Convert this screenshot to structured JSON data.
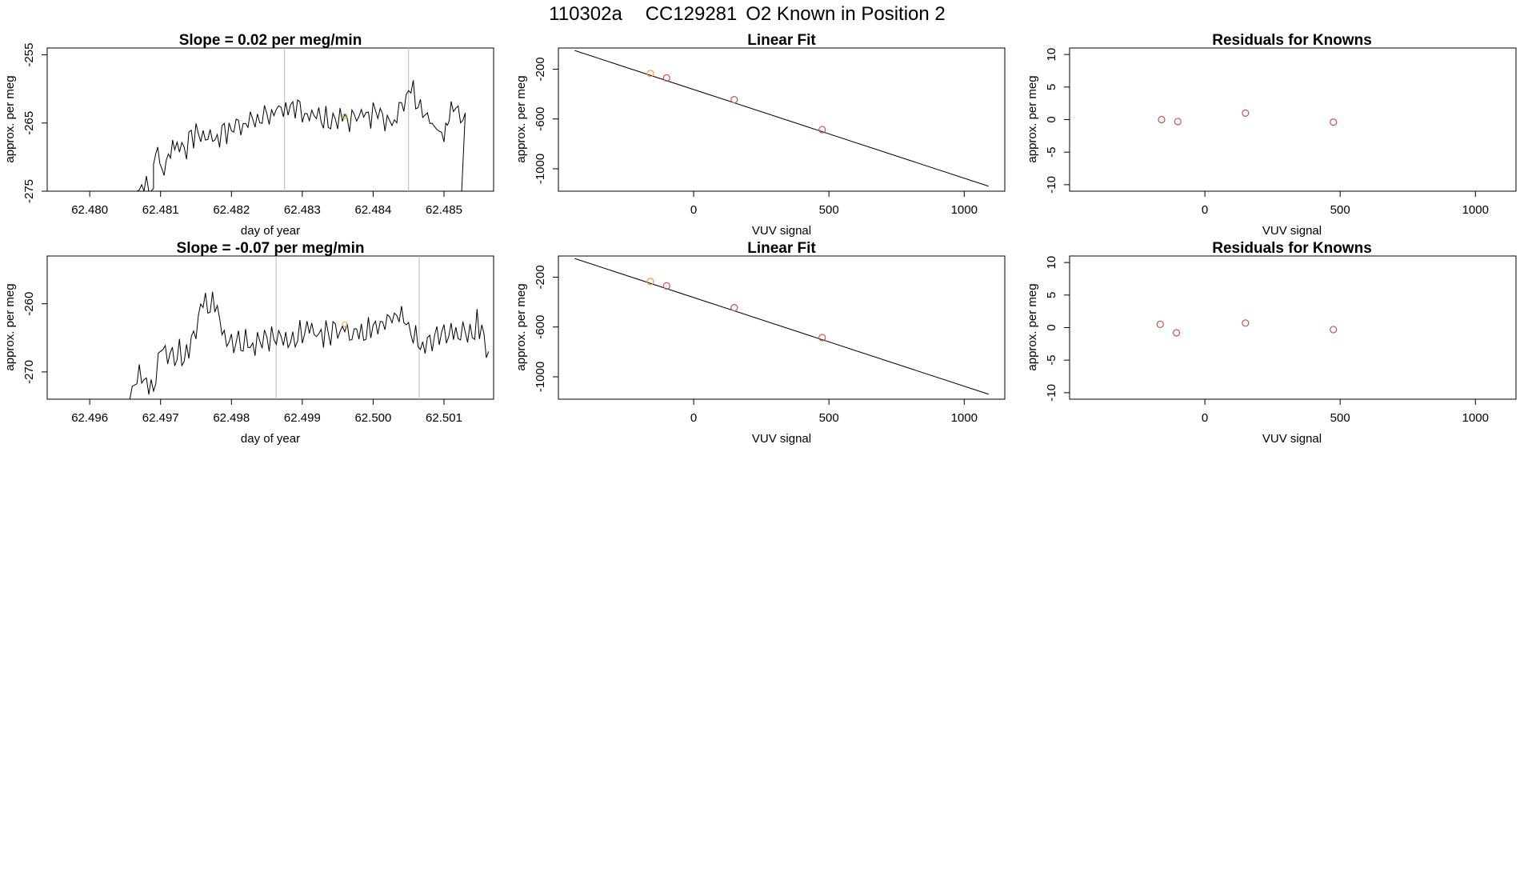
{
  "figure": {
    "title_run": "110302a",
    "title_cylinder": "CC129281",
    "title_desc": "O2 Known in Position  2"
  },
  "chart_data": [
    {
      "type": "line",
      "title": "Slope =  0.02  per meg/min",
      "xlabel": "day of year",
      "ylabel": "approx. per meg",
      "xlim": [
        62.4794,
        62.4857
      ],
      "ylim": [
        -275,
        -254
      ],
      "xticks": [
        "62.480",
        "62.481",
        "62.482",
        "62.483",
        "62.484",
        "62.485"
      ],
      "yticks": [
        "-255",
        "-265",
        "-275"
      ],
      "vlines": [
        62.48275,
        62.4845
      ],
      "marker": {
        "x": 62.4836,
        "y": -264,
        "color": "#f0a030"
      },
      "anchors": [
        [
          62.4794,
          -275.0
        ],
        [
          62.4807,
          -275.0
        ],
        [
          62.4808,
          -274.2
        ],
        [
          62.4809,
          -275.2
        ],
        [
          62.4809,
          -270
        ],
        [
          62.48105,
          -271
        ],
        [
          62.4812,
          -268
        ],
        [
          62.4813,
          -269.5
        ],
        [
          62.4815,
          -266
        ],
        [
          62.4818,
          -267
        ],
        [
          62.4822,
          -265
        ],
        [
          62.4828,
          -262.5
        ],
        [
          62.4832,
          -264.5
        ],
        [
          62.4836,
          -264
        ],
        [
          62.484,
          -263.5
        ],
        [
          62.4843,
          -265
        ],
        [
          62.4845,
          -259.5
        ],
        [
          62.4847,
          -263.5
        ],
        [
          62.4849,
          -266
        ],
        [
          62.485,
          -267.5
        ],
        [
          62.48505,
          -266
        ],
        [
          62.4851,
          -262
        ],
        [
          62.4853,
          -264
        ],
        [
          62.48525,
          -275.5
        ]
      ],
      "wiggle_amp": 2.2
    },
    {
      "type": "line",
      "title": "Slope =  -0.07  per meg/min",
      "xlabel": "day of year",
      "ylabel": "approx. per meg",
      "xlim": [
        62.4954,
        62.5017
      ],
      "ylim": [
        -274,
        -253
      ],
      "xticks": [
        "62.496",
        "62.497",
        "62.498",
        "62.499",
        "62.500",
        "62.501"
      ],
      "yticks": [
        "-260",
        "-270"
      ],
      "vlines": [
        62.49863,
        62.50065
      ],
      "marker": {
        "x": 62.4996,
        "y": -263,
        "color": "#f0a030"
      },
      "anchors": [
        [
          62.4954,
          -274.2
        ],
        [
          62.4966,
          -274.2
        ],
        [
          62.4967,
          -270
        ],
        [
          62.4969,
          -272
        ],
        [
          62.497,
          -267
        ],
        [
          62.4974,
          -267.5
        ],
        [
          62.4976,
          -260
        ],
        [
          62.4978,
          -260.5
        ],
        [
          62.4979,
          -266
        ],
        [
          62.4983,
          -265.5
        ],
        [
          62.4987,
          -265
        ],
        [
          62.4991,
          -264
        ],
        [
          62.4996,
          -264.5
        ],
        [
          62.5,
          -263.5
        ],
        [
          62.5004,
          -262
        ],
        [
          62.5007,
          -265.5
        ],
        [
          62.5012,
          -264.5
        ],
        [
          62.5015,
          -263
        ],
        [
          62.50163,
          -267
        ]
      ],
      "wiggle_amp": 2.2
    },
    {
      "type": "scatter",
      "title": "Linear Fit",
      "xlabel": "VUV signal",
      "ylabel": "approx. per meg",
      "xlim": [
        -500,
        1150
      ],
      "ylim": [
        -1180,
        -30
      ],
      "xticks": [
        0,
        500,
        1000
      ],
      "yticks": [
        -200,
        -600,
        -1000
      ],
      "fit_line": {
        "x": [
          -440,
          1090
        ],
        "y": [
          -50,
          -1140
        ]
      },
      "points": [
        {
          "x": -160,
          "y": -235,
          "color": "#e8a040"
        },
        {
          "x": -100,
          "y": -270,
          "color": "#c85050"
        },
        {
          "x": 150,
          "y": -445,
          "color": "#c85050"
        },
        {
          "x": 475,
          "y": -685,
          "color": "#c85050"
        }
      ]
    },
    {
      "type": "scatter",
      "title": "Residuals for Knowns",
      "xlabel": "VUV signal",
      "ylabel": "approx. per meg",
      "xlim": [
        -500,
        1150
      ],
      "ylim": [
        -11,
        11
      ],
      "xticks": [
        0,
        500,
        1000
      ],
      "yticks": [
        10,
        5,
        0,
        -5,
        -10
      ],
      "points": [
        {
          "x": -160,
          "y": 0.0,
          "color": "#c85050"
        },
        {
          "x": -100,
          "y": -0.3,
          "color": "#c85050"
        },
        {
          "x": 150,
          "y": 1.0,
          "color": "#c85050"
        },
        {
          "x": 475,
          "y": -0.4,
          "color": "#c85050"
        }
      ]
    },
    {
      "type": "scatter",
      "title": "Linear Fit",
      "xlabel": "VUV signal",
      "ylabel": "approx. per meg",
      "xlim": [
        -500,
        1150
      ],
      "ylim": [
        -1180,
        -30
      ],
      "xticks": [
        0,
        500,
        1000
      ],
      "yticks": [
        -200,
        -600,
        -1000
      ],
      "fit_line": {
        "x": [
          -440,
          1090
        ],
        "y": [
          -50,
          -1140
        ]
      },
      "points": [
        {
          "x": -160,
          "y": -235,
          "color": "#e8a040"
        },
        {
          "x": -100,
          "y": -270,
          "color": "#c85050"
        },
        {
          "x": 150,
          "y": -445,
          "color": "#c85050"
        },
        {
          "x": 475,
          "y": -685,
          "color": "#c85050"
        }
      ]
    },
    {
      "type": "scatter",
      "title": "Residuals for Knowns",
      "xlabel": "VUV signal",
      "ylabel": "approx. per meg",
      "xlim": [
        -500,
        1150
      ],
      "ylim": [
        -11,
        11
      ],
      "xticks": [
        0,
        500,
        1000
      ],
      "yticks": [
        10,
        5,
        0,
        -5,
        -10
      ],
      "points": [
        {
          "x": -165,
          "y": 0.5,
          "color": "#c85050"
        },
        {
          "x": -105,
          "y": -0.8,
          "color": "#c85050"
        },
        {
          "x": 150,
          "y": 0.7,
          "color": "#c85050"
        },
        {
          "x": 475,
          "y": -0.3,
          "color": "#c85050"
        }
      ]
    }
  ]
}
